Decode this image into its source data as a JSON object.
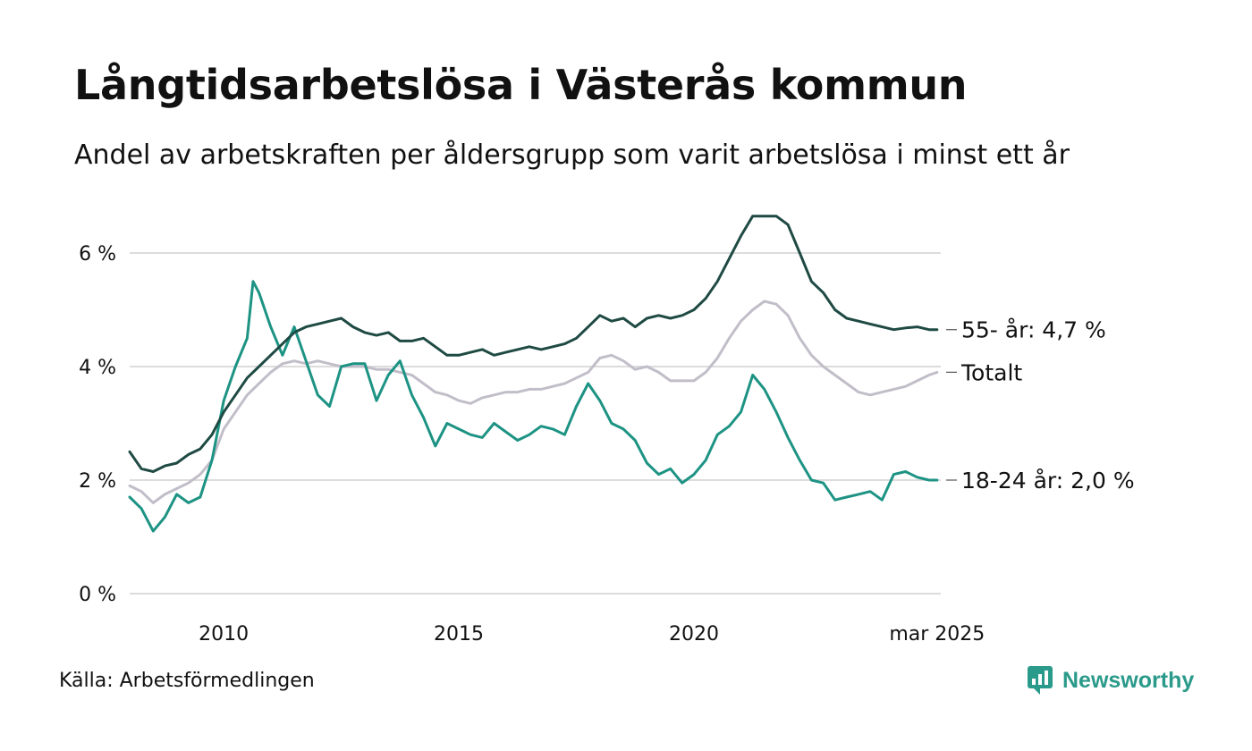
{
  "title": "Långtidsarbetslösa i Västerås kommun",
  "subtitle": "Andel av arbetskraften per åldersgrupp som varit arbetslösa i minst ett år",
  "source": "Källa: Arbetsförmedlingen",
  "brand": {
    "name": "Newsworthy",
    "icon": "newsworthy-logo-icon",
    "color": "#2a9a8a"
  },
  "chart_data": {
    "type": "line",
    "x_unit": "year",
    "xlim": [
      2008.0,
      2025.25
    ],
    "ylim": [
      0,
      6.7
    ],
    "yticks": [
      0,
      2,
      4,
      6
    ],
    "ytick_labels": [
      "0 %",
      "2 %",
      "4 %",
      "6 %"
    ],
    "xticks": [
      2010,
      2015,
      2020,
      2025.17
    ],
    "xtick_labels": [
      "2010",
      "2015",
      "2020",
      "mar 2025"
    ],
    "grid": true,
    "series": [
      {
        "key": "s55",
        "end_label": "55- år: 4,7 %",
        "color": "#1f4a43",
        "x": [
          2008.0,
          2008.25,
          2008.5,
          2008.75,
          2009.0,
          2009.25,
          2009.5,
          2009.75,
          2010.0,
          2010.25,
          2010.5,
          2010.75,
          2011.0,
          2011.25,
          2011.5,
          2011.75,
          2012.0,
          2012.25,
          2012.5,
          2012.75,
          2013.0,
          2013.25,
          2013.5,
          2013.75,
          2014.0,
          2014.25,
          2014.5,
          2014.75,
          2015.0,
          2015.25,
          2015.5,
          2015.75,
          2016.0,
          2016.25,
          2016.5,
          2016.75,
          2017.0,
          2017.25,
          2017.5,
          2017.75,
          2018.0,
          2018.25,
          2018.5,
          2018.75,
          2019.0,
          2019.25,
          2019.5,
          2019.75,
          2020.0,
          2020.25,
          2020.5,
          2020.75,
          2021.0,
          2021.25,
          2021.5,
          2021.75,
          2022.0,
          2022.25,
          2022.5,
          2022.75,
          2023.0,
          2023.25,
          2023.5,
          2023.75,
          2024.0,
          2024.25,
          2024.5,
          2024.75,
          2025.0,
          2025.17
        ],
        "y": [
          2.5,
          2.2,
          2.15,
          2.25,
          2.3,
          2.45,
          2.55,
          2.8,
          3.2,
          3.5,
          3.8,
          4.0,
          4.2,
          4.4,
          4.6,
          4.7,
          4.75,
          4.8,
          4.85,
          4.7,
          4.6,
          4.55,
          4.6,
          4.45,
          4.45,
          4.5,
          4.35,
          4.2,
          4.2,
          4.25,
          4.3,
          4.2,
          4.25,
          4.3,
          4.35,
          4.3,
          4.35,
          4.4,
          4.5,
          4.7,
          4.9,
          4.8,
          4.85,
          4.7,
          4.85,
          4.9,
          4.85,
          4.9,
          5.0,
          5.2,
          5.5,
          5.9,
          6.3,
          6.65,
          6.65,
          6.65,
          6.5,
          6.0,
          5.5,
          5.3,
          5.0,
          4.85,
          4.8,
          4.75,
          4.7,
          4.65,
          4.68,
          4.7,
          4.65,
          4.65
        ]
      },
      {
        "key": "total",
        "end_label": "Totalt",
        "color": "#c2bec9",
        "x": [
          2008.0,
          2008.25,
          2008.5,
          2008.75,
          2009.0,
          2009.25,
          2009.5,
          2009.75,
          2010.0,
          2010.25,
          2010.5,
          2010.75,
          2011.0,
          2011.25,
          2011.5,
          2011.75,
          2012.0,
          2012.25,
          2012.5,
          2012.75,
          2013.0,
          2013.25,
          2013.5,
          2013.75,
          2014.0,
          2014.25,
          2014.5,
          2014.75,
          2015.0,
          2015.25,
          2015.5,
          2015.75,
          2016.0,
          2016.25,
          2016.5,
          2016.75,
          2017.0,
          2017.25,
          2017.5,
          2017.75,
          2018.0,
          2018.25,
          2018.5,
          2018.75,
          2019.0,
          2019.25,
          2019.5,
          2019.75,
          2020.0,
          2020.25,
          2020.5,
          2020.75,
          2021.0,
          2021.25,
          2021.5,
          2021.75,
          2022.0,
          2022.25,
          2022.5,
          2022.75,
          2023.0,
          2023.25,
          2023.5,
          2023.75,
          2024.0,
          2024.25,
          2024.5,
          2024.75,
          2025.0,
          2025.17
        ],
        "y": [
          1.9,
          1.8,
          1.6,
          1.75,
          1.85,
          1.95,
          2.1,
          2.35,
          2.9,
          3.2,
          3.5,
          3.7,
          3.9,
          4.05,
          4.1,
          4.05,
          4.1,
          4.05,
          4.0,
          4.0,
          4.0,
          3.95,
          3.95,
          3.9,
          3.85,
          3.7,
          3.55,
          3.5,
          3.4,
          3.35,
          3.45,
          3.5,
          3.55,
          3.55,
          3.6,
          3.6,
          3.65,
          3.7,
          3.8,
          3.9,
          4.15,
          4.2,
          4.1,
          3.95,
          4.0,
          3.9,
          3.75,
          3.75,
          3.75,
          3.9,
          4.15,
          4.5,
          4.8,
          5.0,
          5.15,
          5.1,
          4.9,
          4.5,
          4.2,
          4.0,
          3.85,
          3.7,
          3.55,
          3.5,
          3.55,
          3.6,
          3.65,
          3.75,
          3.85,
          3.9
        ]
      },
      {
        "key": "s1824",
        "end_label": "18-24 år: 2,0 %",
        "color": "#1d9384",
        "x": [
          2008.0,
          2008.25,
          2008.5,
          2008.75,
          2009.0,
          2009.25,
          2009.5,
          2009.75,
          2010.0,
          2010.25,
          2010.5,
          2010.625,
          2010.75,
          2011.0,
          2011.25,
          2011.5,
          2011.75,
          2012.0,
          2012.25,
          2012.5,
          2012.75,
          2013.0,
          2013.25,
          2013.5,
          2013.75,
          2014.0,
          2014.25,
          2014.5,
          2014.75,
          2015.0,
          2015.25,
          2015.5,
          2015.75,
          2016.0,
          2016.25,
          2016.5,
          2016.75,
          2017.0,
          2017.25,
          2017.5,
          2017.75,
          2018.0,
          2018.25,
          2018.5,
          2018.75,
          2019.0,
          2019.25,
          2019.5,
          2019.75,
          2020.0,
          2020.25,
          2020.5,
          2020.75,
          2021.0,
          2021.25,
          2021.5,
          2021.75,
          2022.0,
          2022.25,
          2022.5,
          2022.75,
          2023.0,
          2023.25,
          2023.5,
          2023.75,
          2024.0,
          2024.25,
          2024.5,
          2024.75,
          2025.0,
          2025.17
        ],
        "y": [
          1.7,
          1.5,
          1.1,
          1.35,
          1.75,
          1.6,
          1.7,
          2.35,
          3.4,
          4.0,
          4.5,
          5.5,
          5.3,
          4.7,
          4.2,
          4.7,
          4.1,
          3.5,
          3.3,
          4.0,
          4.05,
          4.05,
          3.4,
          3.85,
          4.1,
          3.5,
          3.1,
          2.6,
          3.0,
          2.9,
          2.8,
          2.75,
          3.0,
          2.85,
          2.7,
          2.8,
          2.95,
          2.9,
          2.8,
          3.3,
          3.7,
          3.4,
          3.0,
          2.9,
          2.7,
          2.3,
          2.1,
          2.2,
          1.95,
          2.1,
          2.35,
          2.8,
          2.95,
          3.2,
          3.85,
          3.6,
          3.2,
          2.75,
          2.35,
          2.0,
          1.95,
          1.65,
          1.7,
          1.75,
          1.8,
          1.65,
          2.1,
          2.15,
          2.05,
          2.0,
          2.0
        ]
      }
    ]
  }
}
